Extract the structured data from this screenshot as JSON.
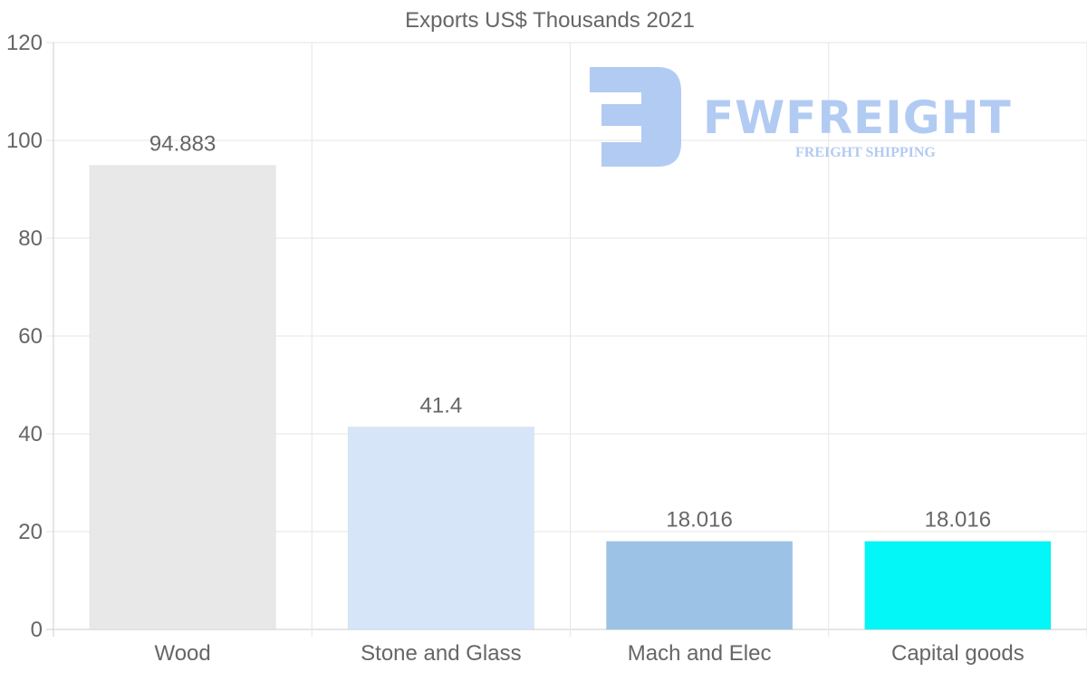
{
  "chart_data": {
    "type": "bar",
    "title": "Exports US$ Thousands 2021",
    "xlabel": "",
    "ylabel": "",
    "categories": [
      "Wood",
      "Stone and Glass",
      "Mach and Elec",
      "Capital goods"
    ],
    "values": [
      94.883,
      41.4,
      18.016,
      18.016
    ],
    "value_labels": [
      "94.883",
      "41.4",
      "18.016",
      "18.016"
    ],
    "colors": [
      "#e8e8e8",
      "#d6e6f8",
      "#9cc3e6",
      "#03f7f7"
    ],
    "ylim": [
      0,
      120
    ],
    "yticks": [
      0,
      20,
      40,
      60,
      80,
      100,
      120
    ],
    "grid": true,
    "legend": "none"
  },
  "watermark": {
    "brand": "FWFREIGHT",
    "tagline": "FREIGHT SHIPPING",
    "color": "#b2cbf2"
  }
}
